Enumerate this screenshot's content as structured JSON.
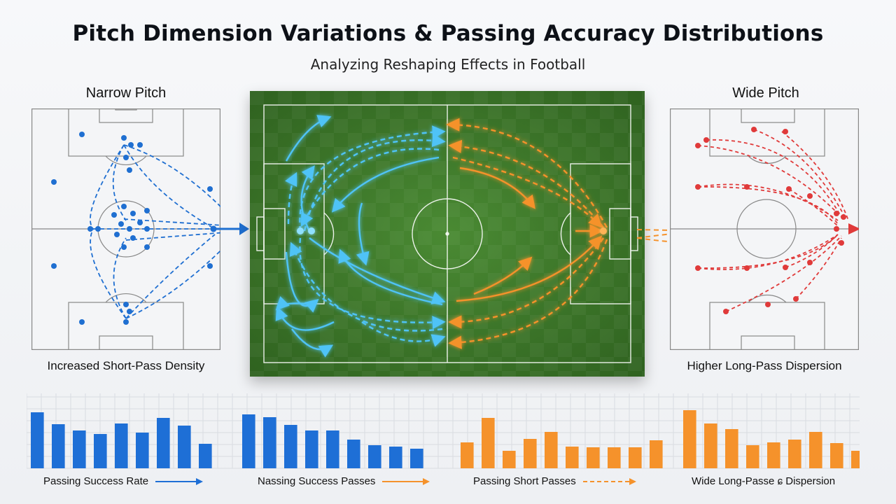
{
  "header": {
    "title": "Pitch Dimension Variations & Passing Accuracy Distributions",
    "subtitle": "Analyzing Reshaping Effects in Football"
  },
  "left_panel": {
    "title": "Narrow Pitch",
    "caption": "Increased Short-Pass Density",
    "color": "#1f6fd1"
  },
  "right_panel": {
    "title": "Wide Pitch",
    "caption": "Higher Long-Pass Dispersion",
    "color": "#e03a3a"
  },
  "center_pitch": {
    "left_arrows_color": "#4fc3f7",
    "right_arrows_color": "#f5922b",
    "grass_color": "#3f7a2a"
  },
  "bar_groups": [
    {
      "color": "#1e6fd6",
      "values": [
        80,
        63,
        54,
        49,
        64,
        51,
        72,
        61,
        35
      ]
    },
    {
      "color": "#1e6fd6",
      "values": [
        77,
        73,
        62,
        54,
        54,
        41,
        33,
        31,
        28
      ]
    },
    {
      "color": "#f5922b",
      "values": [
        37,
        72,
        25,
        42,
        52,
        31,
        30,
        30,
        30,
        40
      ]
    },
    {
      "color": "#f5922b",
      "values": [
        83,
        64,
        56,
        33,
        37,
        41,
        52,
        36,
        25
      ]
    }
  ],
  "legend": [
    {
      "label": "Passing Success Rate",
      "color": "#1e6fd6",
      "style": "solid"
    },
    {
      "label": "Nassing Success Passes",
      "color": "#f5922b",
      "style": "solid"
    },
    {
      "label": "Passing Short Passes",
      "color": "#f5922b",
      "style": "dashed"
    },
    {
      "label": "Wide Long-Passe ɕ Dispersion",
      "color": "#f5922b",
      "style": "none"
    }
  ]
}
